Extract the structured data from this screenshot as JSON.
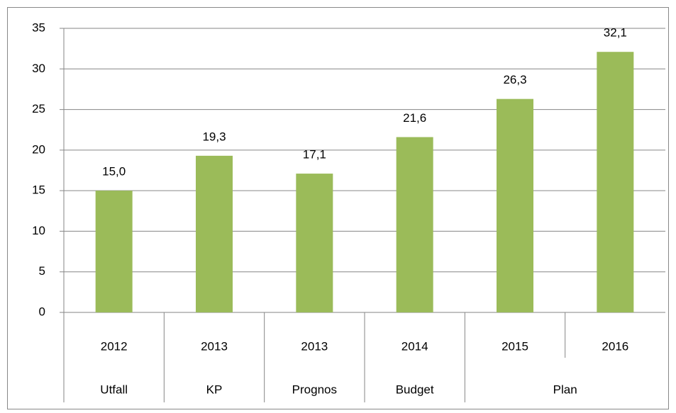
{
  "chart_data": {
    "type": "bar",
    "categories": [
      "2012",
      "2013",
      "2013",
      "2014",
      "2015",
      "2016"
    ],
    "groups": [
      "Utfall",
      "KP",
      "Prognos",
      "Budget",
      "Plan",
      null
    ],
    "values": [
      15.0,
      19.3,
      17.1,
      21.6,
      26.3,
      32.1
    ],
    "value_labels": [
      "15,0",
      "19,3",
      "17,1",
      "21,6",
      "26,3",
      "32,1"
    ],
    "color": "#9bbb59",
    "ylim": [
      0,
      35
    ],
    "yticks": [
      0,
      5,
      10,
      15,
      20,
      25,
      30,
      35
    ],
    "grid": true
  }
}
